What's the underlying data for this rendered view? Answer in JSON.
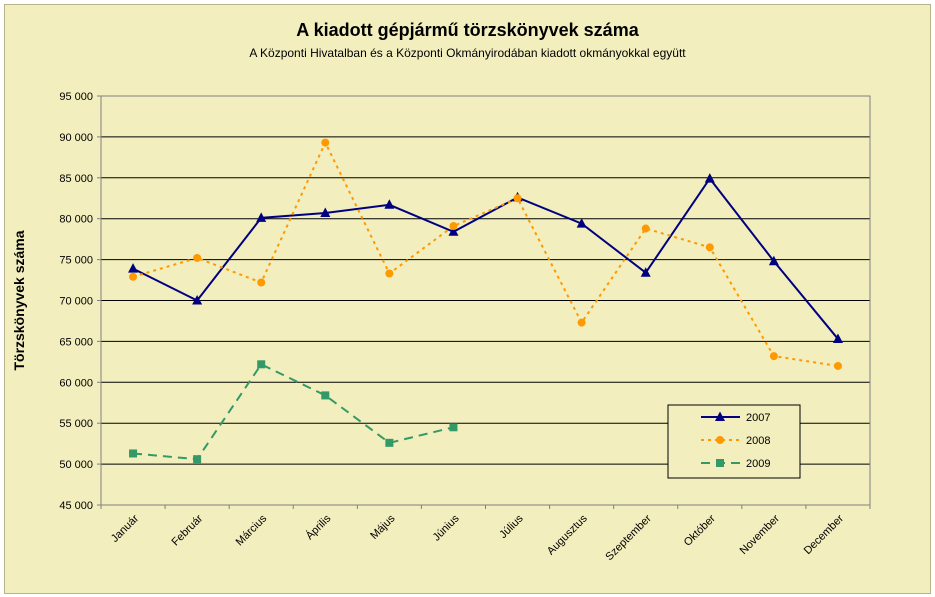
{
  "chart_data": {
    "type": "line",
    "title": "A  kiadott gépjármű  törzskönyvek száma",
    "subtitle": "A Központi Hivatalban és a Központi Okmányirodában kiadott okmányokkal együtt",
    "ylabel": "Törzskönyvek száma",
    "xlabel": "",
    "ylim": [
      45000,
      95000
    ],
    "ytick_step": 5000,
    "y_tick_labels": [
      "45 000",
      "50 000",
      "55 000",
      "60 000",
      "65 000",
      "70 000",
      "75 000",
      "80 000",
      "85 000",
      "90 000",
      "95 000"
    ],
    "categories": [
      "Január",
      "Február",
      "Március",
      "Április",
      "Május",
      "Június",
      "Július",
      "Augusztus",
      "Szeptember",
      "Október",
      "November",
      "December"
    ],
    "grid": "horizontal",
    "legend_position": "bottom-right",
    "series": [
      {
        "name": "2007",
        "color": "#000080",
        "marker": "triangle",
        "dash": "solid",
        "values": [
          73900,
          70000,
          80100,
          80700,
          81700,
          78400,
          82600,
          79400,
          73400,
          84900,
          74800,
          65300
        ]
      },
      {
        "name": "2008",
        "color": "#ff9900",
        "marker": "circle",
        "dash": "dotted",
        "values": [
          72900,
          75200,
          72200,
          89300,
          73300,
          79100,
          82500,
          67300,
          78800,
          76500,
          63200,
          62000
        ]
      },
      {
        "name": "2009",
        "color": "#339966",
        "marker": "square",
        "dash": "dashed",
        "values": [
          51300,
          50600,
          62200,
          58400,
          52600,
          54500,
          null,
          null,
          null,
          null,
          null,
          null
        ]
      }
    ]
  }
}
